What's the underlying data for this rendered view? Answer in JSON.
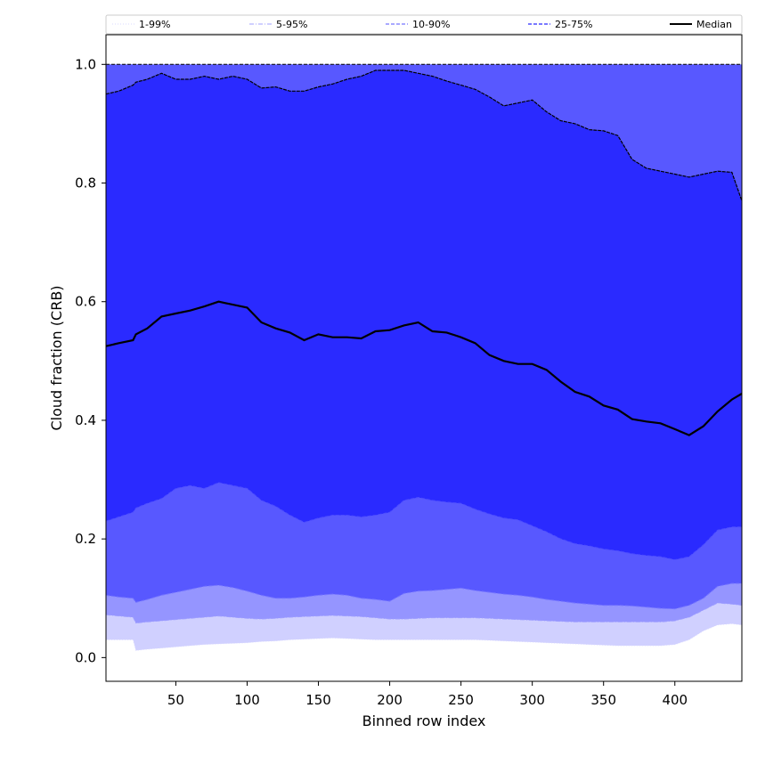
{
  "chart_data": {
    "type": "area",
    "xlabel": "Binned row index",
    "ylabel": "Cloud fraction (CRB)",
    "xlim": [
      1,
      447
    ],
    "ylim": [
      -0.04,
      1.05
    ],
    "xticks": [
      50,
      100,
      150,
      200,
      250,
      300,
      350,
      400
    ],
    "yticks": [
      0.0,
      0.2,
      0.4,
      0.6,
      0.8,
      1.0
    ],
    "grid": false,
    "legend_position": "top",
    "colors": {
      "band_1_99": "#d0d0ff",
      "band_5_95": "#9595ff",
      "band_10_90": "#5858ff",
      "band_25_75": "#2a2aff",
      "line_1_99": "#d9d9ff",
      "line_5_95": "#a0a0ff",
      "line_10_90": "#7676ff",
      "line_25_75": "#4d4dff",
      "median": "#000000"
    },
    "legend": [
      {
        "key": "p1_99",
        "label": "1-99%",
        "style": "dotted"
      },
      {
        "key": "p5_95",
        "label": "5-95%",
        "style": "dashdot"
      },
      {
        "key": "p10_90",
        "label": "10-90%",
        "style": "dashed"
      },
      {
        "key": "p25_75",
        "label": "25-75%",
        "style": "dashed"
      },
      {
        "key": "median",
        "label": "Median",
        "style": "solid"
      }
    ],
    "x": [
      1,
      10,
      20,
      22,
      30,
      40,
      50,
      60,
      70,
      80,
      90,
      100,
      110,
      120,
      130,
      140,
      150,
      160,
      170,
      180,
      190,
      200,
      210,
      220,
      230,
      240,
      250,
      260,
      270,
      280,
      290,
      300,
      310,
      320,
      330,
      340,
      350,
      360,
      370,
      380,
      390,
      400,
      410,
      420,
      430,
      440,
      447
    ],
    "series": [
      {
        "key": "p1",
        "values": [
          0.03,
          0.03,
          0.03,
          0.012,
          0.014,
          0.016,
          0.018,
          0.02,
          0.022,
          0.023,
          0.024,
          0.025,
          0.027,
          0.028,
          0.03,
          0.031,
          0.032,
          0.033,
          0.032,
          0.031,
          0.03,
          0.03,
          0.03,
          0.03,
          0.03,
          0.03,
          0.03,
          0.03,
          0.029,
          0.028,
          0.027,
          0.026,
          0.025,
          0.024,
          0.023,
          0.022,
          0.021,
          0.02,
          0.02,
          0.02,
          0.02,
          0.022,
          0.03,
          0.045,
          0.055,
          0.057,
          0.055
        ]
      },
      {
        "key": "p5",
        "values": [
          0.072,
          0.07,
          0.068,
          0.058,
          0.06,
          0.062,
          0.064,
          0.066,
          0.068,
          0.07,
          0.068,
          0.066,
          0.065,
          0.066,
          0.068,
          0.069,
          0.07,
          0.071,
          0.07,
          0.069,
          0.067,
          0.065,
          0.065,
          0.066,
          0.067,
          0.067,
          0.067,
          0.067,
          0.066,
          0.065,
          0.064,
          0.063,
          0.062,
          0.061,
          0.06,
          0.06,
          0.06,
          0.06,
          0.06,
          0.06,
          0.06,
          0.062,
          0.068,
          0.08,
          0.092,
          0.09,
          0.088
        ]
      },
      {
        "key": "p10",
        "values": [
          0.105,
          0.102,
          0.1,
          0.093,
          0.098,
          0.105,
          0.11,
          0.115,
          0.12,
          0.122,
          0.118,
          0.112,
          0.105,
          0.1,
          0.1,
          0.102,
          0.105,
          0.107,
          0.105,
          0.1,
          0.098,
          0.095,
          0.108,
          0.112,
          0.113,
          0.115,
          0.117,
          0.113,
          0.11,
          0.107,
          0.105,
          0.102,
          0.098,
          0.095,
          0.092,
          0.09,
          0.088,
          0.088,
          0.087,
          0.085,
          0.083,
          0.082,
          0.088,
          0.1,
          0.12,
          0.125,
          0.125
        ]
      },
      {
        "key": "p25",
        "values": [
          0.23,
          0.237,
          0.245,
          0.252,
          0.26,
          0.268,
          0.285,
          0.29,
          0.285,
          0.295,
          0.29,
          0.285,
          0.265,
          0.255,
          0.24,
          0.228,
          0.235,
          0.24,
          0.24,
          0.237,
          0.24,
          0.245,
          0.265,
          0.27,
          0.265,
          0.262,
          0.26,
          0.25,
          0.242,
          0.235,
          0.232,
          0.222,
          0.212,
          0.2,
          0.192,
          0.188,
          0.183,
          0.18,
          0.175,
          0.172,
          0.17,
          0.165,
          0.17,
          0.19,
          0.215,
          0.22,
          0.22
        ]
      },
      {
        "key": "median",
        "values": [
          0.525,
          0.53,
          0.535,
          0.545,
          0.555,
          0.575,
          0.58,
          0.585,
          0.592,
          0.6,
          0.595,
          0.59,
          0.565,
          0.555,
          0.548,
          0.535,
          0.545,
          0.54,
          0.54,
          0.538,
          0.55,
          0.552,
          0.56,
          0.565,
          0.55,
          0.548,
          0.54,
          0.53,
          0.51,
          0.5,
          0.495,
          0.495,
          0.485,
          0.465,
          0.448,
          0.44,
          0.425,
          0.418,
          0.402,
          0.398,
          0.395,
          0.385,
          0.375,
          0.39,
          0.415,
          0.435,
          0.445
        ]
      },
      {
        "key": "p75",
        "values": [
          0.95,
          0.955,
          0.965,
          0.97,
          0.975,
          0.985,
          0.975,
          0.975,
          0.98,
          0.975,
          0.98,
          0.975,
          0.96,
          0.962,
          0.955,
          0.955,
          0.962,
          0.967,
          0.975,
          0.98,
          0.99,
          0.99,
          0.99,
          0.985,
          0.98,
          0.972,
          0.965,
          0.958,
          0.945,
          0.93,
          0.935,
          0.94,
          0.92,
          0.905,
          0.9,
          0.89,
          0.888,
          0.88,
          0.84,
          0.825,
          0.82,
          0.815,
          0.81,
          0.815,
          0.82,
          0.818,
          0.77
        ]
      },
      {
        "key": "p90",
        "values": [
          1,
          1,
          1,
          1,
          1,
          1,
          1,
          1,
          1,
          1,
          1,
          1,
          1,
          1,
          1,
          1,
          1,
          1,
          1,
          1,
          1,
          1,
          1,
          1,
          1,
          1,
          1,
          1,
          1,
          1,
          1,
          1,
          1,
          1,
          1,
          1,
          1,
          1,
          1,
          1,
          1,
          1,
          1,
          1,
          1,
          1,
          1
        ]
      },
      {
        "key": "p95",
        "values": [
          1,
          1,
          1,
          1,
          1,
          1,
          1,
          1,
          1,
          1,
          1,
          1,
          1,
          1,
          1,
          1,
          1,
          1,
          1,
          1,
          1,
          1,
          1,
          1,
          1,
          1,
          1,
          1,
          1,
          1,
          1,
          1,
          1,
          1,
          1,
          1,
          1,
          1,
          1,
          1,
          1,
          1,
          1,
          1,
          1,
          1,
          1
        ]
      },
      {
        "key": "p99",
        "values": [
          1,
          1,
          1,
          1,
          1,
          1,
          1,
          1,
          1,
          1,
          1,
          1,
          1,
          1,
          1,
          1,
          1,
          1,
          1,
          1,
          1,
          1,
          1,
          1,
          1,
          1,
          1,
          1,
          1,
          1,
          1,
          1,
          1,
          1,
          1,
          1,
          1,
          1,
          1,
          1,
          1,
          1,
          1,
          1,
          1,
          1,
          1
        ]
      }
    ]
  }
}
